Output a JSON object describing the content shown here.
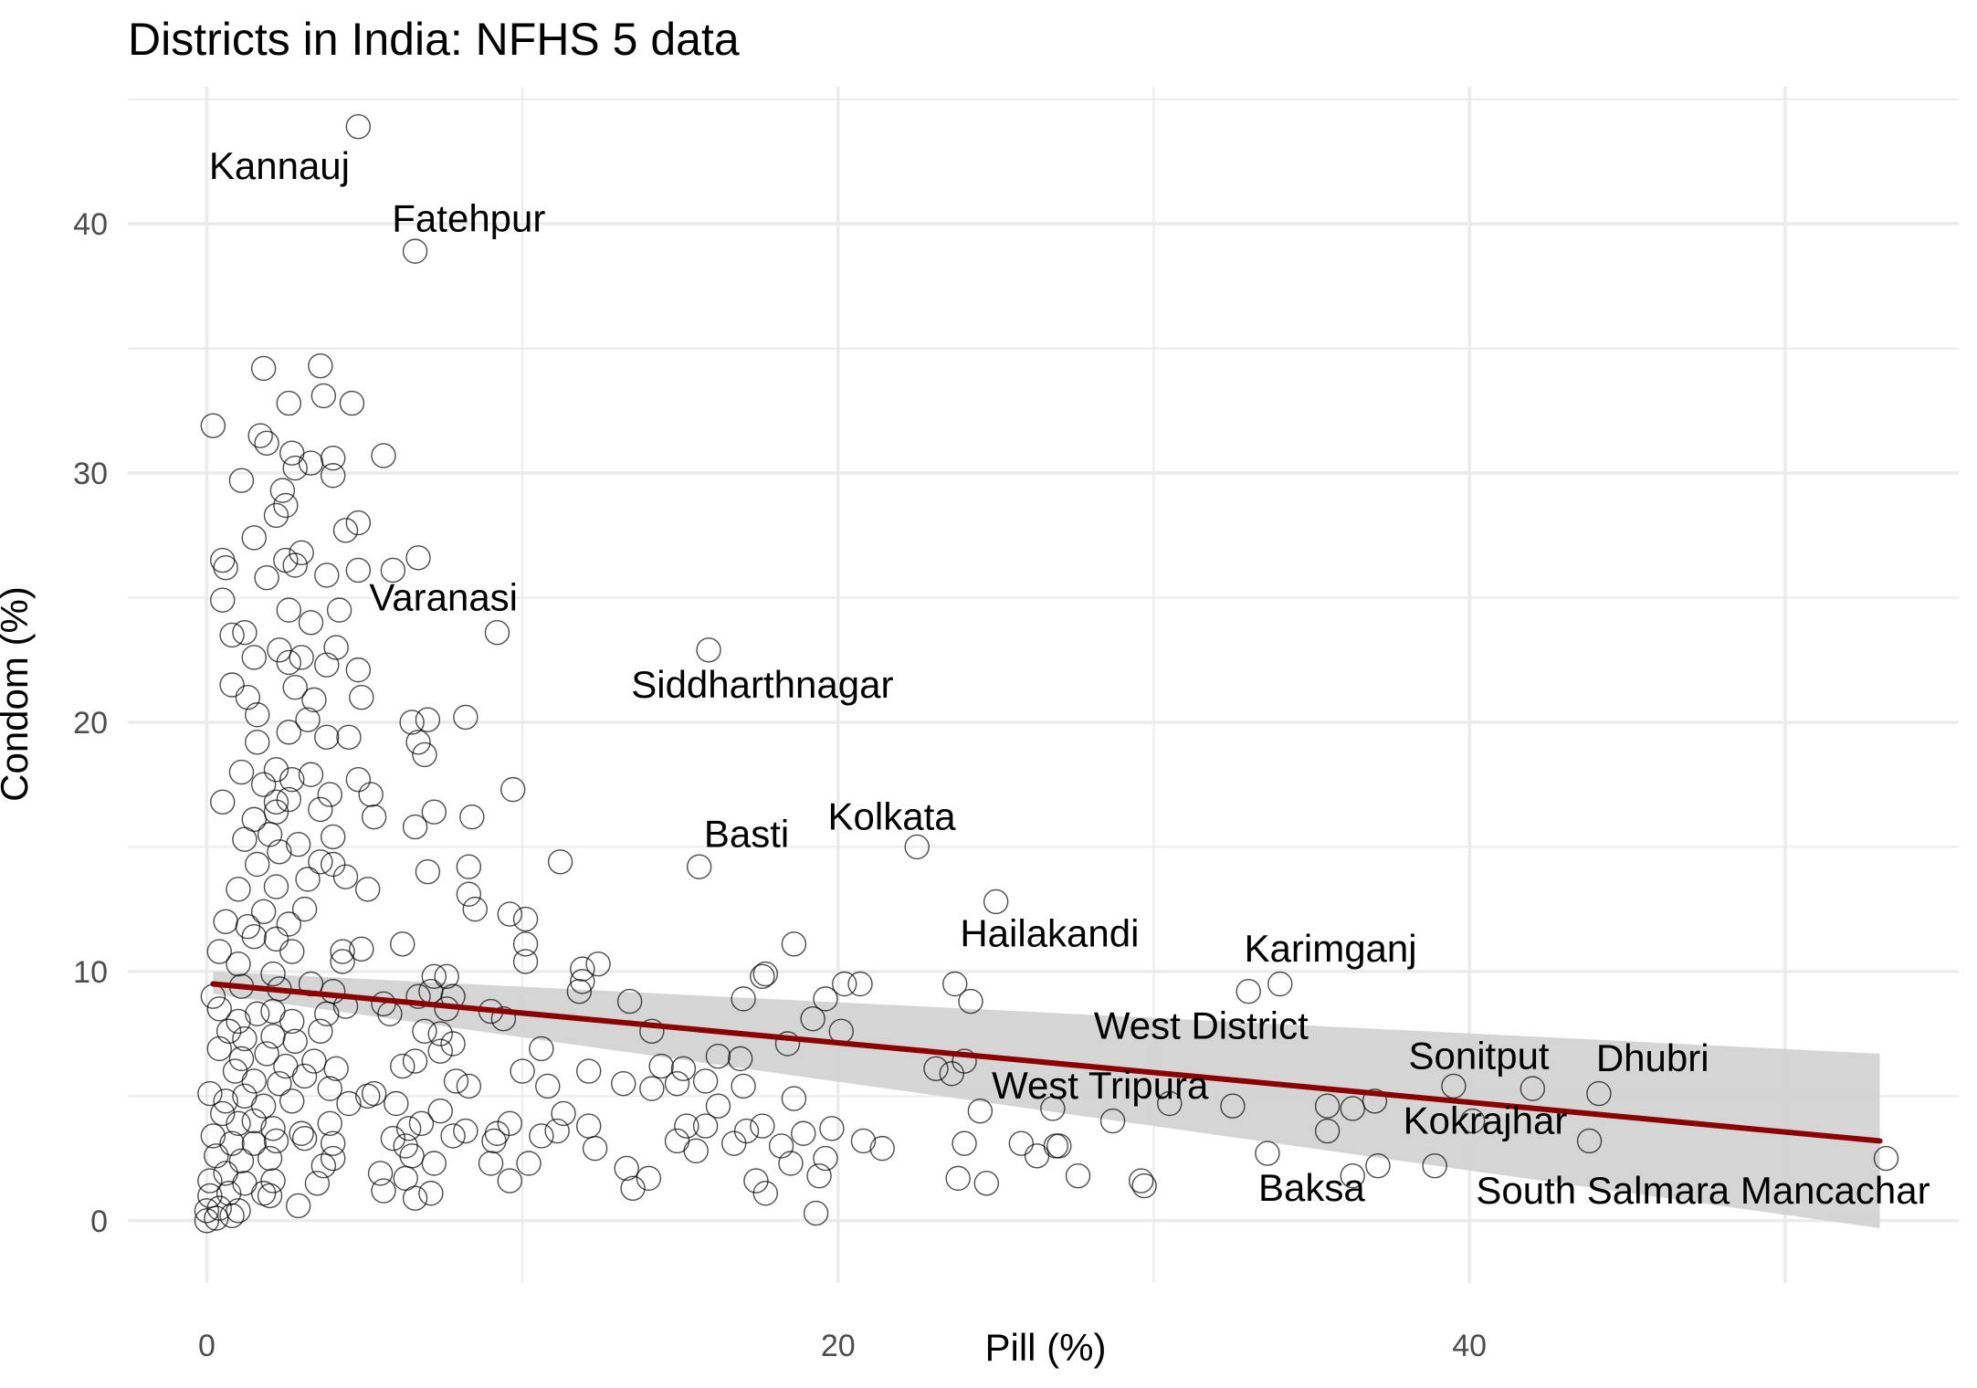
{
  "chart_data": {
    "type": "scatter",
    "title": "Districts in India: NFHS 5 data",
    "xlabel": "Pill (%)",
    "ylabel": "Condom (%)",
    "xlim": [
      -2.5,
      55.5
    ],
    "ylim": [
      -2.5,
      45.5
    ],
    "x_ticks": [
      0,
      20,
      40
    ],
    "y_ticks": [
      0,
      10,
      20,
      30,
      40
    ],
    "grid": true,
    "colors": {
      "points": "#000000",
      "trend": "#8b0000",
      "band": "#d3d3d3",
      "grid": "#ebebeb",
      "tick_text": "#4d4d4d"
    },
    "trend": {
      "x": [
        0.2,
        53.0
      ],
      "y": [
        9.5,
        3.2
      ]
    },
    "band": {
      "x": [
        0.2,
        53.0
      ],
      "upper": [
        10.0,
        6.7
      ],
      "lower": [
        9.1,
        -0.3
      ]
    },
    "labels": [
      {
        "text": "Kannauj",
        "x": 2.3,
        "y": 42.2
      },
      {
        "text": "Fatehpur",
        "x": 8.3,
        "y": 40.1
      },
      {
        "text": "Varanasi",
        "x": 7.5,
        "y": 24.9
      },
      {
        "text": "Siddharthnagar",
        "x": 17.6,
        "y": 21.4
      },
      {
        "text": "Basti",
        "x": 17.1,
        "y": 15.4
      },
      {
        "text": "Kolkata",
        "x": 21.7,
        "y": 16.1
      },
      {
        "text": "Hailakandi",
        "x": 26.7,
        "y": 11.4
      },
      {
        "text": "Karimganj",
        "x": 35.6,
        "y": 10.8
      },
      {
        "text": "West District",
        "x": 31.5,
        "y": 7.7
      },
      {
        "text": "West Tripura",
        "x": 28.3,
        "y": 5.3
      },
      {
        "text": "Sonitput",
        "x": 40.3,
        "y": 6.5
      },
      {
        "text": "Dhubri",
        "x": 45.8,
        "y": 6.4
      },
      {
        "text": "Kokrajhar",
        "x": 40.5,
        "y": 3.9
      },
      {
        "text": "Baksa",
        "x": 35.0,
        "y": 1.2
      },
      {
        "text": "South Salmara Mancachar",
        "x": 47.4,
        "y": 1.1
      }
    ],
    "points": [
      [
        4.8,
        43.9
      ],
      [
        6.6,
        38.9
      ],
      [
        0.2,
        31.9
      ],
      [
        1.8,
        34.2
      ],
      [
        3.6,
        34.3
      ],
      [
        2.6,
        32.8
      ],
      [
        3.7,
        33.1
      ],
      [
        4.6,
        32.8
      ],
      [
        1.7,
        31.5
      ],
      [
        1.9,
        31.2
      ],
      [
        2.7,
        30.8
      ],
      [
        4.0,
        30.6
      ],
      [
        1.1,
        29.7
      ],
      [
        2.8,
        30.2
      ],
      [
        3.3,
        30.4
      ],
      [
        4.0,
        29.9
      ],
      [
        5.6,
        30.7
      ],
      [
        2.4,
        29.3
      ],
      [
        2.5,
        28.7
      ],
      [
        2.2,
        28.3
      ],
      [
        1.5,
        27.4
      ],
      [
        4.4,
        27.7
      ],
      [
        4.8,
        28.0
      ],
      [
        0.5,
        26.5
      ],
      [
        0.6,
        26.2
      ],
      [
        2.8,
        26.3
      ],
      [
        2.5,
        26.5
      ],
      [
        3.0,
        26.8
      ],
      [
        4.8,
        26.1
      ],
      [
        5.9,
        26.1
      ],
      [
        6.7,
        26.6
      ],
      [
        0.5,
        24.9
      ],
      [
        1.9,
        25.8
      ],
      [
        3.8,
        25.9
      ],
      [
        4.2,
        24.5
      ],
      [
        2.6,
        24.5
      ],
      [
        3.3,
        24.0
      ],
      [
        0.8,
        23.5
      ],
      [
        1.2,
        23.6
      ],
      [
        1.5,
        22.6
      ],
      [
        2.3,
        22.9
      ],
      [
        2.6,
        22.4
      ],
      [
        3.0,
        22.6
      ],
      [
        3.8,
        22.3
      ],
      [
        4.1,
        23.0
      ],
      [
        4.8,
        22.1
      ],
      [
        9.2,
        23.6
      ],
      [
        15.9,
        22.9
      ],
      [
        0.8,
        21.5
      ],
      [
        1.3,
        21.0
      ],
      [
        1.6,
        20.3
      ],
      [
        2.8,
        21.4
      ],
      [
        3.4,
        20.9
      ],
      [
        4.9,
        21.0
      ],
      [
        1.6,
        19.2
      ],
      [
        2.2,
        18.1
      ],
      [
        2.6,
        19.6
      ],
      [
        3.2,
        20.1
      ],
      [
        3.8,
        19.4
      ],
      [
        4.5,
        19.4
      ],
      [
        6.5,
        20.0
      ],
      [
        7.0,
        20.1
      ],
      [
        8.2,
        20.2
      ],
      [
        6.7,
        19.2
      ],
      [
        6.9,
        18.7
      ],
      [
        1.1,
        18.0
      ],
      [
        1.8,
        17.5
      ],
      [
        2.2,
        16.8
      ],
      [
        2.7,
        17.7
      ],
      [
        3.3,
        17.9
      ],
      [
        3.9,
        17.1
      ],
      [
        4.8,
        17.7
      ],
      [
        5.2,
        17.1
      ],
      [
        9.7,
        17.3
      ],
      [
        0.5,
        16.8
      ],
      [
        1.5,
        16.1
      ],
      [
        2.2,
        16.4
      ],
      [
        2.6,
        16.9
      ],
      [
        3.6,
        16.5
      ],
      [
        5.3,
        16.2
      ],
      [
        7.2,
        16.4
      ],
      [
        8.4,
        16.2
      ],
      [
        1.2,
        15.3
      ],
      [
        2.0,
        15.5
      ],
      [
        2.9,
        15.1
      ],
      [
        4.0,
        15.4
      ],
      [
        6.6,
        15.8
      ],
      [
        1.6,
        14.3
      ],
      [
        2.3,
        14.8
      ],
      [
        3.6,
        14.4
      ],
      [
        4.0,
        14.3
      ],
      [
        8.3,
        14.2
      ],
      [
        7.0,
        14.0
      ],
      [
        11.2,
        14.4
      ],
      [
        15.6,
        14.2
      ],
      [
        22.5,
        15.0
      ],
      [
        1.0,
        13.3
      ],
      [
        2.2,
        13.4
      ],
      [
        3.2,
        13.7
      ],
      [
        4.4,
        13.8
      ],
      [
        5.1,
        13.3
      ],
      [
        8.3,
        13.1
      ],
      [
        8.5,
        12.5
      ],
      [
        9.6,
        12.3
      ],
      [
        10.1,
        12.1
      ],
      [
        25.0,
        12.8
      ],
      [
        0.6,
        12.0
      ],
      [
        1.3,
        11.8
      ],
      [
        1.8,
        12.4
      ],
      [
        2.6,
        11.9
      ],
      [
        3.1,
        12.5
      ],
      [
        1.5,
        11.4
      ],
      [
        2.2,
        11.3
      ],
      [
        2.7,
        10.8
      ],
      [
        4.3,
        10.8
      ],
      [
        4.9,
        10.9
      ],
      [
        6.2,
        11.1
      ],
      [
        10.1,
        11.1
      ],
      [
        18.6,
        11.1
      ],
      [
        0.4,
        10.8
      ],
      [
        1.0,
        10.3
      ],
      [
        2.1,
        9.9
      ],
      [
        4.3,
        10.4
      ],
      [
        10.1,
        10.4
      ],
      [
        11.9,
        10.1
      ],
      [
        12.4,
        10.3
      ],
      [
        7.2,
        9.8
      ],
      [
        7.6,
        9.8
      ],
      [
        11.9,
        9.6
      ],
      [
        17.6,
        9.8
      ],
      [
        17.7,
        9.9
      ],
      [
        20.2,
        9.5
      ],
      [
        20.7,
        9.5
      ],
      [
        23.7,
        9.5
      ],
      [
        33.0,
        9.2
      ],
      [
        34.0,
        9.5
      ],
      [
        0.2,
        9.0
      ],
      [
        1.1,
        9.4
      ],
      [
        2.3,
        9.3
      ],
      [
        3.3,
        9.5
      ],
      [
        4.0,
        9.2
      ],
      [
        5.6,
        8.7
      ],
      [
        6.7,
        9.0
      ],
      [
        7.1,
        9.2
      ],
      [
        7.8,
        9.0
      ],
      [
        11.8,
        9.2
      ],
      [
        13.4,
        8.8
      ],
      [
        19.6,
        8.9
      ],
      [
        17.0,
        8.9
      ],
      [
        24.2,
        8.8
      ],
      [
        0.4,
        8.5
      ],
      [
        1.0,
        8.0
      ],
      [
        1.6,
        8.3
      ],
      [
        2.1,
        8.4
      ],
      [
        2.7,
        8.0
      ],
      [
        3.8,
        8.3
      ],
      [
        4.4,
        8.6
      ],
      [
        5.8,
        8.3
      ],
      [
        7.6,
        8.5
      ],
      [
        9.0,
        8.4
      ],
      [
        9.4,
        8.1
      ],
      [
        19.2,
        8.1
      ],
      [
        20.1,
        7.6
      ],
      [
        0.7,
        7.6
      ],
      [
        1.2,
        7.3
      ],
      [
        2.1,
        7.4
      ],
      [
        2.8,
        7.2
      ],
      [
        3.6,
        7.6
      ],
      [
        6.9,
        7.6
      ],
      [
        7.4,
        7.5
      ],
      [
        7.8,
        7.1
      ],
      [
        10.6,
        6.9
      ],
      [
        14.1,
        7.6
      ],
      [
        18.4,
        7.1
      ],
      [
        0.4,
        6.9
      ],
      [
        1.1,
        6.5
      ],
      [
        1.9,
        6.7
      ],
      [
        2.5,
        6.2
      ],
      [
        3.4,
        6.4
      ],
      [
        4.1,
        6.1
      ],
      [
        6.2,
        6.2
      ],
      [
        6.6,
        6.4
      ],
      [
        7.4,
        6.8
      ],
      [
        10.0,
        6.0
      ],
      [
        12.1,
        6.0
      ],
      [
        14.4,
        6.2
      ],
      [
        15.1,
        6.1
      ],
      [
        16.2,
        6.6
      ],
      [
        16.9,
        6.5
      ],
      [
        23.1,
        6.1
      ],
      [
        23.6,
        5.9
      ],
      [
        24.0,
        6.4
      ],
      [
        0.9,
        6.0
      ],
      [
        1.5,
        5.6
      ],
      [
        2.3,
        5.5
      ],
      [
        3.1,
        5.8
      ],
      [
        3.9,
        5.3
      ],
      [
        5.3,
        5.1
      ],
      [
        7.9,
        5.6
      ],
      [
        8.3,
        5.4
      ],
      [
        10.8,
        5.4
      ],
      [
        13.2,
        5.5
      ],
      [
        14.1,
        5.3
      ],
      [
        14.9,
        5.5
      ],
      [
        15.8,
        5.6
      ],
      [
        17.0,
        5.4
      ],
      [
        0.1,
        5.1
      ],
      [
        0.6,
        4.8
      ],
      [
        1.2,
        5.0
      ],
      [
        1.8,
        4.6
      ],
      [
        2.7,
        4.8
      ],
      [
        4.5,
        4.7
      ],
      [
        5.1,
        5.0
      ],
      [
        6.0,
        4.7
      ],
      [
        7.4,
        4.4
      ],
      [
        11.3,
        4.3
      ],
      [
        16.2,
        4.6
      ],
      [
        18.6,
        4.9
      ],
      [
        24.5,
        4.4
      ],
      [
        26.8,
        4.5
      ],
      [
        30.5,
        4.7
      ],
      [
        32.5,
        4.6
      ],
      [
        35.5,
        4.6
      ],
      [
        36.3,
        4.5
      ],
      [
        37.0,
        4.8
      ],
      [
        39.5,
        5.4
      ],
      [
        42.0,
        5.3
      ],
      [
        44.1,
        5.1
      ],
      [
        40.1,
        4.0
      ],
      [
        0.5,
        4.3
      ],
      [
        1.0,
        3.9
      ],
      [
        1.5,
        4.0
      ],
      [
        2.1,
        3.7
      ],
      [
        3.0,
        3.5
      ],
      [
        3.9,
        3.9
      ],
      [
        6.4,
        3.7
      ],
      [
        6.8,
        3.9
      ],
      [
        8.2,
        3.6
      ],
      [
        9.2,
        3.5
      ],
      [
        9.6,
        3.9
      ],
      [
        11.1,
        3.6
      ],
      [
        12.1,
        3.8
      ],
      [
        15.2,
        3.8
      ],
      [
        15.8,
        3.8
      ],
      [
        17.1,
        3.6
      ],
      [
        17.6,
        3.8
      ],
      [
        18.9,
        3.5
      ],
      [
        19.8,
        3.7
      ],
      [
        28.7,
        4.0
      ],
      [
        35.5,
        3.6
      ],
      [
        0.2,
        3.4
      ],
      [
        0.8,
        3.1
      ],
      [
        1.5,
        3.1
      ],
      [
        2.2,
        3.2
      ],
      [
        3.1,
        3.3
      ],
      [
        4.0,
        3.1
      ],
      [
        5.9,
        3.3
      ],
      [
        6.3,
        3.0
      ],
      [
        7.8,
        3.4
      ],
      [
        9.1,
        3.2
      ],
      [
        10.6,
        3.4
      ],
      [
        12.3,
        2.9
      ],
      [
        14.9,
        3.2
      ],
      [
        16.7,
        3.1
      ],
      [
        18.2,
        3.0
      ],
      [
        20.8,
        3.2
      ],
      [
        21.4,
        2.9
      ],
      [
        24.0,
        3.1
      ],
      [
        25.8,
        3.1
      ],
      [
        26.9,
        3.0
      ],
      [
        27.0,
        3.0
      ],
      [
        33.6,
        2.7
      ],
      [
        43.8,
        3.2
      ],
      [
        0.3,
        2.6
      ],
      [
        1.1,
        2.4
      ],
      [
        2.0,
        2.5
      ],
      [
        3.7,
        2.2
      ],
      [
        4.0,
        2.5
      ],
      [
        6.5,
        2.6
      ],
      [
        7.2,
        2.3
      ],
      [
        9.0,
        2.3
      ],
      [
        10.2,
        2.3
      ],
      [
        13.3,
        2.1
      ],
      [
        15.5,
        2.8
      ],
      [
        18.5,
        2.3
      ],
      [
        19.6,
        2.5
      ],
      [
        26.3,
        2.6
      ],
      [
        37.1,
        2.2
      ],
      [
        38.9,
        2.2
      ],
      [
        53.2,
        2.5
      ],
      [
        0.1,
        1.6
      ],
      [
        0.6,
        1.9
      ],
      [
        1.2,
        1.5
      ],
      [
        2.1,
        1.6
      ],
      [
        3.5,
        1.5
      ],
      [
        5.5,
        1.9
      ],
      [
        6.3,
        1.7
      ],
      [
        9.6,
        1.6
      ],
      [
        14.0,
        1.7
      ],
      [
        17.4,
        1.6
      ],
      [
        24.7,
        1.5
      ],
      [
        27.6,
        1.8
      ],
      [
        29.6,
        1.6
      ],
      [
        36.3,
        1.8
      ],
      [
        23.8,
        1.7
      ],
      [
        0.1,
        1.0
      ],
      [
        0.7,
        1.1
      ],
      [
        1.8,
        1.1
      ],
      [
        2.0,
        1.0
      ],
      [
        5.6,
        1.2
      ],
      [
        6.6,
        0.9
      ],
      [
        7.1,
        1.1
      ],
      [
        13.5,
        1.3
      ],
      [
        17.7,
        1.1
      ],
      [
        29.7,
        1.4
      ],
      [
        19.4,
        1.8
      ],
      [
        0.0,
        0.4
      ],
      [
        0.4,
        0.5
      ],
      [
        1.0,
        0.4
      ],
      [
        2.9,
        0.6
      ],
      [
        19.3,
        0.3
      ],
      [
        0.0,
        0.0
      ],
      [
        0.3,
        0.1
      ],
      [
        0.8,
        0.2
      ]
    ]
  }
}
